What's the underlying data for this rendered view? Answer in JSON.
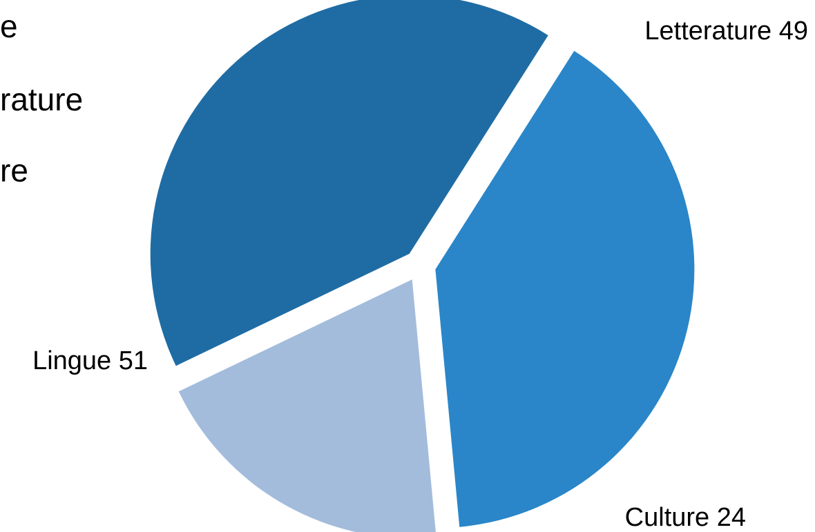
{
  "chart_data": {
    "type": "pie",
    "categories": [
      "Letterature",
      "Culture",
      "Lingue"
    ],
    "values": [
      49,
      24,
      51
    ],
    "colors": [
      "#2a86c8",
      "#a3bcdc",
      "#1f6ca4"
    ],
    "exploded": true,
    "data_labels": [
      "Letterature 49",
      "Culture 24",
      "Lingue 51"
    ],
    "legend": {
      "placement": "left",
      "partially_cropped": true,
      "visible_fragments": [
        "e",
        "rature",
        "re"
      ]
    }
  }
}
